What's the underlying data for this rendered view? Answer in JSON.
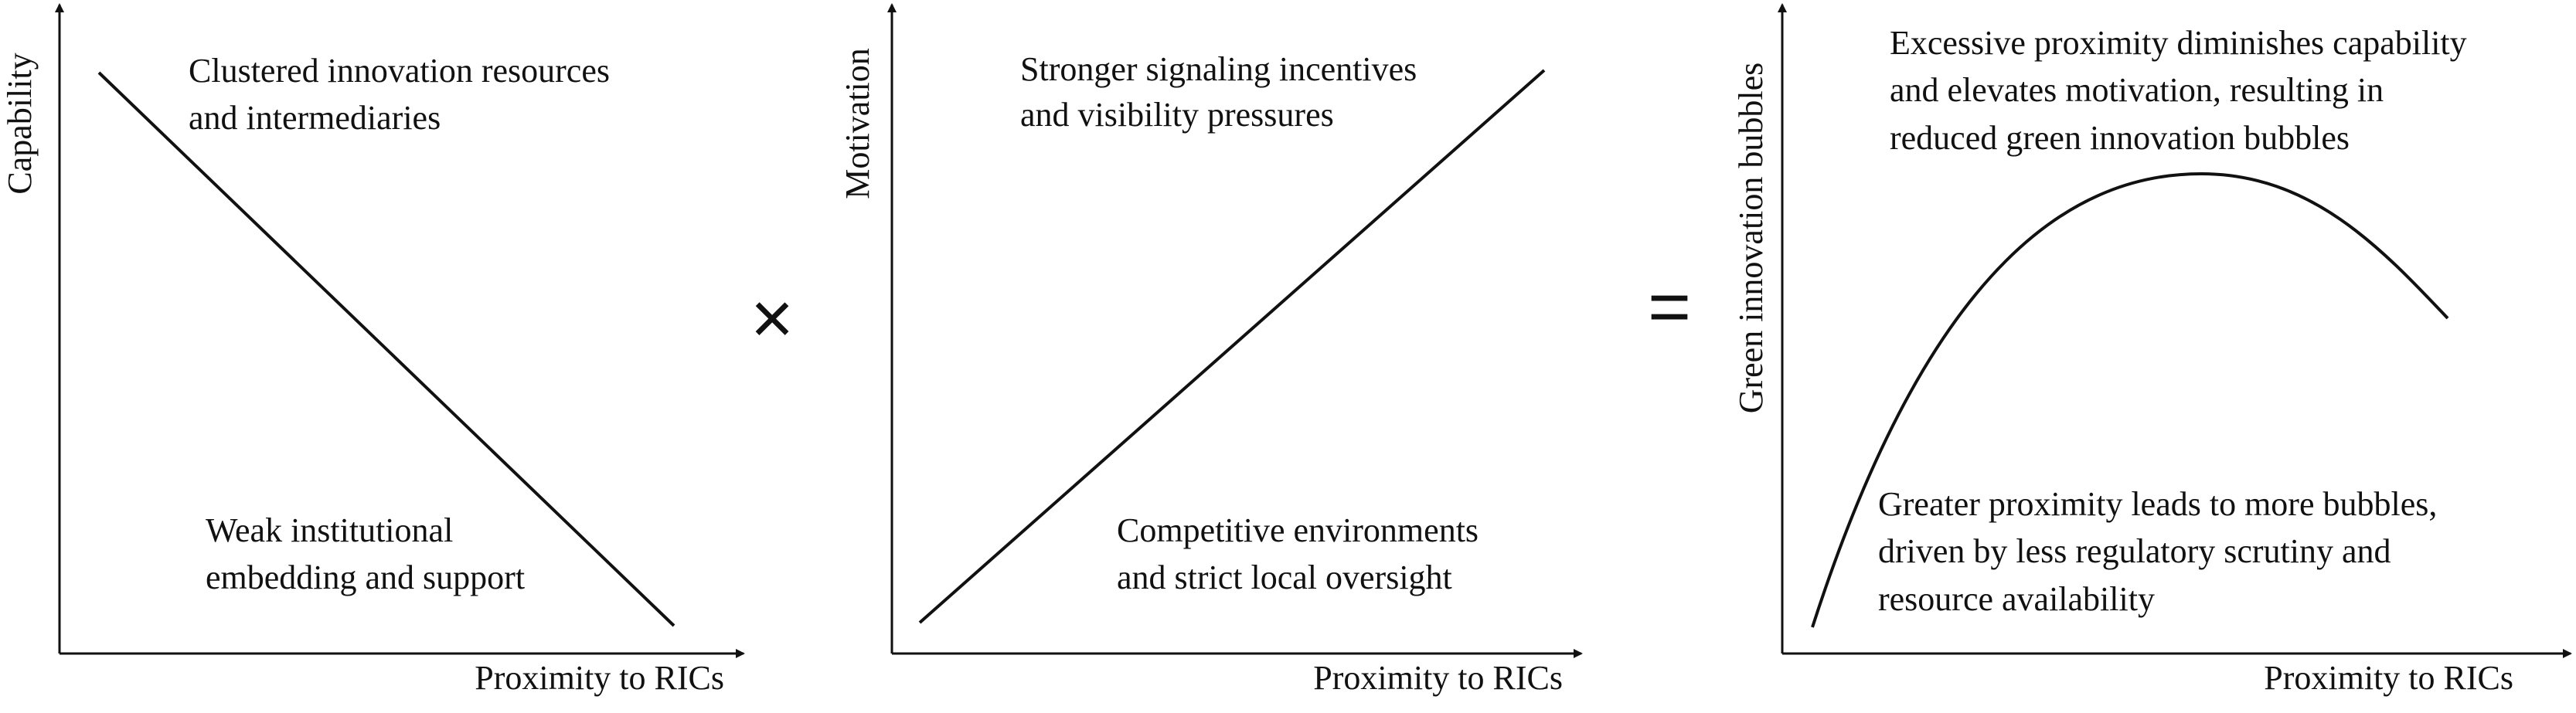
{
  "panels": [
    {
      "y_label": "Capability",
      "x_label": "Proximity to RICs",
      "annotations": [
        [
          "Clustered innovation resources",
          "and intermediaries"
        ],
        [
          "Weak institutional",
          "embedding and support"
        ]
      ]
    },
    {
      "y_label": "Motivation",
      "x_label": "Proximity to RICs",
      "annotations": [
        [
          "Stronger signaling incentives",
          "and visibility pressures"
        ],
        [
          "Competitive environments",
          "and strict local oversight"
        ]
      ]
    },
    {
      "y_label": "Green innovation bubbles",
      "x_label": "Proximity to RICs",
      "annotations": [
        [
          "Excessive proximity diminishes capability",
          "and elevates motivation, resulting in",
          "reduced green innovation bubbles"
        ],
        [
          "Greater proximity leads to more bubbles,",
          "driven by less regulatory scrutiny and",
          "resource availability"
        ]
      ]
    }
  ],
  "operators": [
    "×",
    "="
  ]
}
